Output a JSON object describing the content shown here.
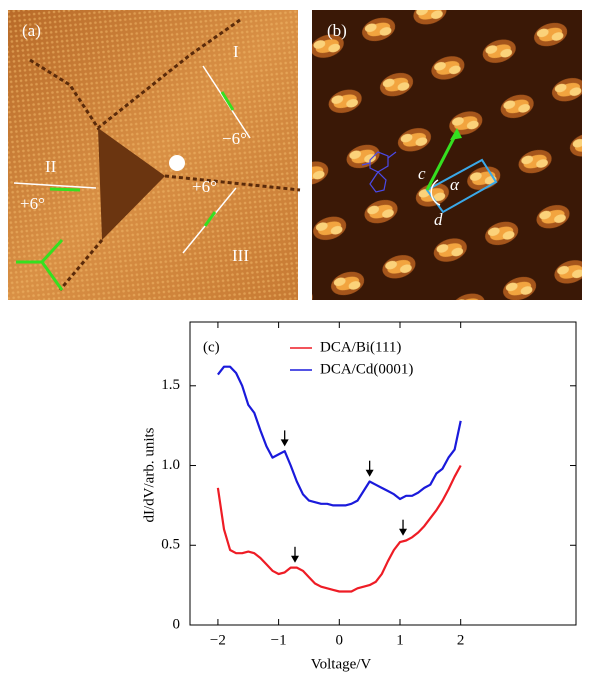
{
  "images": [
    {
      "label": "(a)",
      "annotations": [
        "I",
        "−6°",
        "II",
        "+6°",
        "+6°",
        "III"
      ]
    },
    {
      "label": "(b)",
      "annotations": [
        "c",
        "α",
        "d"
      ]
    }
  ],
  "chart_data": {
    "type": "line",
    "label": "(c)",
    "x_label": "Voltage/V",
    "y_label": "dI/dV/arb. units",
    "x": [
      -2.0,
      -1.9,
      -1.8,
      -1.7,
      -1.6,
      -1.5,
      -1.4,
      -1.3,
      -1.2,
      -1.1,
      -1.0,
      -0.9,
      -0.8,
      -0.7,
      -0.6,
      -0.5,
      -0.4,
      -0.3,
      -0.2,
      -0.1,
      0,
      0.1,
      0.2,
      0.3,
      0.4,
      0.5,
      0.6,
      0.7,
      0.8,
      0.9,
      1.0,
      1.1,
      1.2,
      1.3,
      1.4,
      1.5,
      1.6,
      1.7,
      1.8,
      1.9,
      2.0
    ],
    "series": [
      {
        "name": "DCA/Bi(111)",
        "color": "#ee1c25",
        "values": [
          0.86,
          0.6,
          0.47,
          0.45,
          0.45,
          0.46,
          0.45,
          0.42,
          0.38,
          0.34,
          0.32,
          0.33,
          0.36,
          0.36,
          0.34,
          0.3,
          0.26,
          0.24,
          0.23,
          0.22,
          0.21,
          0.21,
          0.21,
          0.23,
          0.24,
          0.25,
          0.27,
          0.32,
          0.4,
          0.47,
          0.52,
          0.53,
          0.55,
          0.58,
          0.62,
          0.67,
          0.72,
          0.78,
          0.85,
          0.93,
          1.0
        ]
      },
      {
        "name": "DCA/Cd(0001)",
        "color": "#1a1adb",
        "values": [
          1.57,
          1.62,
          1.62,
          1.58,
          1.5,
          1.38,
          1.33,
          1.22,
          1.12,
          1.05,
          1.07,
          1.09,
          1.0,
          0.9,
          0.82,
          0.78,
          0.77,
          0.76,
          0.76,
          0.75,
          0.75,
          0.75,
          0.76,
          0.78,
          0.84,
          0.9,
          0.88,
          0.86,
          0.84,
          0.82,
          0.79,
          0.81,
          0.81,
          0.83,
          0.86,
          0.88,
          0.95,
          0.98,
          1.05,
          1.1,
          1.28
        ]
      }
    ],
    "arrows": [
      {
        "x": -0.9,
        "y": 1.12
      },
      {
        "x": 0.5,
        "y": 0.93
      },
      {
        "x": -0.73,
        "y": 0.39
      },
      {
        "x": 1.05,
        "y": 0.56
      }
    ],
    "xlim": [
      -2.46,
      3.9
    ],
    "ylim": [
      0,
      1.9
    ],
    "xticks": [
      {
        "value": -2,
        "label": "−2"
      },
      {
        "value": -1,
        "label": "−1"
      },
      0,
      1,
      2
    ],
    "yticks": [
      0,
      0.5,
      {
        "value": 1,
        "label": "1.0"
      },
      1.5
    ],
    "legend": "upper right"
  }
}
